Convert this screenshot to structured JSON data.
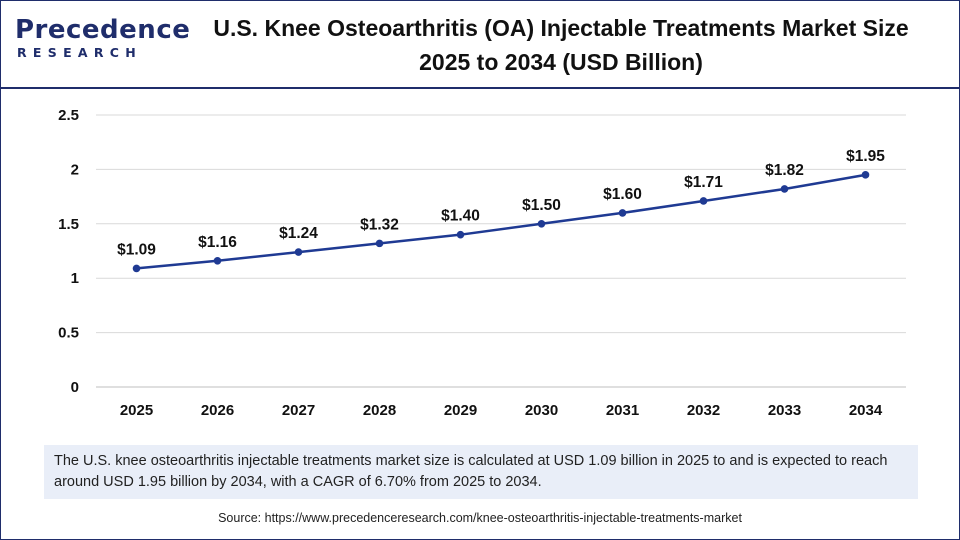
{
  "brand": {
    "name": "Precedence",
    "sub": "RESEARCH",
    "color": "#1f2d6b"
  },
  "title_line1": "U.S. Knee Osteoarthritis (OA) Injectable Treatments Market Size",
  "title_line2": "2025 to 2034 (USD Billion)",
  "description": "The U.S. knee osteoarthritis injectable treatments market size is calculated at USD 1.09 billion in 2025 to and is expected to reach around USD 1.95 billion by 2034, with a CAGR of 6.70% from 2025 to 2034.",
  "source": "Source: https://www.precedenceresearch.com/knee-osteoarthritis-injectable-treatments-market",
  "chart_data": {
    "type": "line",
    "title": "U.S. Knee Osteoarthritis (OA) Injectable Treatments Market Size 2025 to 2034 (USD Billion)",
    "categories": [
      "2025",
      "2026",
      "2027",
      "2028",
      "2029",
      "2030",
      "2031",
      "2032",
      "2033",
      "2034"
    ],
    "values": [
      1.09,
      1.16,
      1.24,
      1.32,
      1.4,
      1.5,
      1.6,
      1.71,
      1.82,
      1.95
    ],
    "labels": [
      "$1.09",
      "$1.16",
      "$1.24",
      "$1.32",
      "$1.40",
      "$1.50",
      "$1.60",
      "$1.71",
      "$1.82",
      "$1.95"
    ],
    "yticks": [
      "0",
      "0.5",
      "1",
      "1.5",
      "2",
      "2.5"
    ],
    "ylim": [
      0,
      2.5
    ],
    "grid": true,
    "line_color": "#1f3a93",
    "xlabel": "",
    "ylabel": ""
  }
}
